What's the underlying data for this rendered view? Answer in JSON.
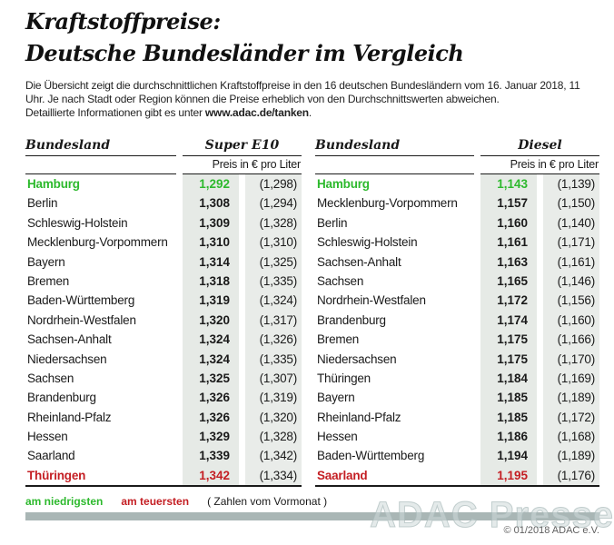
{
  "title": {
    "line1": "Kraftstoffpreise:",
    "line2": "Deutsche Bundesländer im Vergleich"
  },
  "description": {
    "line1": "Die Übersicht zeigt die durchschnittlichen Kraftstoffpreise in den 16 deutschen Bundesländern vom 16. Januar 2018, 11",
    "line2": "Uhr. Je nach Stadt oder Region können die Preise erheblich von den Durchschnittswerten abweichen.",
    "line3_prefix": "Detaillierte Informationen gibt es unter ",
    "line3_url": "www.adac.de/tanken",
    "line3_suffix": "."
  },
  "tables": [
    {
      "id": "super-e10",
      "state_header": "Bundesland",
      "fuel_header": "Super E10",
      "price_header": "Preis in € pro Liter",
      "rows": [
        {
          "state": "Hamburg",
          "price": "1,292",
          "prev": "(1,298)",
          "highlight": "lowest"
        },
        {
          "state": "Berlin",
          "price": "1,308",
          "prev": "(1,294)",
          "highlight": ""
        },
        {
          "state": "Schleswig-Holstein",
          "price": "1,309",
          "prev": "(1,328)",
          "highlight": ""
        },
        {
          "state": "Mecklenburg-Vorpommern",
          "price": "1,310",
          "prev": "(1,310)",
          "highlight": ""
        },
        {
          "state": "Bayern",
          "price": "1,314",
          "prev": "(1,325)",
          "highlight": ""
        },
        {
          "state": "Bremen",
          "price": "1,318",
          "prev": "(1,335)",
          "highlight": ""
        },
        {
          "state": "Baden-Württemberg",
          "price": "1,319",
          "prev": "(1,324)",
          "highlight": ""
        },
        {
          "state": "Nordrhein-Westfalen",
          "price": "1,320",
          "prev": "(1,317)",
          "highlight": ""
        },
        {
          "state": "Sachsen-Anhalt",
          "price": "1,324",
          "prev": "(1,326)",
          "highlight": ""
        },
        {
          "state": "Niedersachsen",
          "price": "1,324",
          "prev": "(1,335)",
          "highlight": ""
        },
        {
          "state": "Sachsen",
          "price": "1,325",
          "prev": "(1,307)",
          "highlight": ""
        },
        {
          "state": "Brandenburg",
          "price": "1,326",
          "prev": "(1,319)",
          "highlight": ""
        },
        {
          "state": "Rheinland-Pfalz",
          "price": "1,326",
          "prev": "(1,320)",
          "highlight": ""
        },
        {
          "state": "Hessen",
          "price": "1,329",
          "prev": "(1,328)",
          "highlight": ""
        },
        {
          "state": "Saarland",
          "price": "1,339",
          "prev": "(1,342)",
          "highlight": ""
        },
        {
          "state": "Thüringen",
          "price": "1,342",
          "prev": "(1,334)",
          "highlight": "highest"
        }
      ]
    },
    {
      "id": "diesel",
      "state_header": "Bundesland",
      "fuel_header": "Diesel",
      "price_header": "Preis in € pro Liter",
      "rows": [
        {
          "state": "Hamburg",
          "price": "1,143",
          "prev": "(1,139)",
          "highlight": "lowest"
        },
        {
          "state": "Mecklenburg-Vorpommern",
          "price": "1,157",
          "prev": "(1,150)",
          "highlight": ""
        },
        {
          "state": "Berlin",
          "price": "1,160",
          "prev": "(1,140)",
          "highlight": ""
        },
        {
          "state": "Schleswig-Holstein",
          "price": "1,161",
          "prev": "(1,171)",
          "highlight": ""
        },
        {
          "state": "Sachsen-Anhalt",
          "price": "1,163",
          "prev": "(1,161)",
          "highlight": ""
        },
        {
          "state": "Sachsen",
          "price": "1,165",
          "prev": "(1,146)",
          "highlight": ""
        },
        {
          "state": "Nordrhein-Westfalen",
          "price": "1,172",
          "prev": "(1,156)",
          "highlight": ""
        },
        {
          "state": "Brandenburg",
          "price": "1,174",
          "prev": "(1,160)",
          "highlight": ""
        },
        {
          "state": "Bremen",
          "price": "1,175",
          "prev": "(1,166)",
          "highlight": ""
        },
        {
          "state": "Niedersachsen",
          "price": "1,175",
          "prev": "(1,170)",
          "highlight": ""
        },
        {
          "state": "Thüringen",
          "price": "1,184",
          "prev": "(1,169)",
          "highlight": ""
        },
        {
          "state": "Bayern",
          "price": "1,185",
          "prev": "(1,189)",
          "highlight": ""
        },
        {
          "state": "Rheinland-Pfalz",
          "price": "1,185",
          "prev": "(1,172)",
          "highlight": ""
        },
        {
          "state": "Hessen",
          "price": "1,186",
          "prev": "(1,168)",
          "highlight": ""
        },
        {
          "state": "Baden-Württemberg",
          "price": "1,194",
          "prev": "(1,189)",
          "highlight": ""
        },
        {
          "state": "Saarland",
          "price": "1,195",
          "prev": "(1,176)",
          "highlight": "highest"
        }
      ]
    }
  ],
  "legend": {
    "lowest": "am niedrigsten",
    "highest": "am teuersten",
    "note": "( Zahlen vom Vormonat )"
  },
  "footer": {
    "watermark": "ADAC Presse",
    "copyright": "© 01/2018 ADAC e.V."
  },
  "colors": {
    "lowest_green": "#2db92d",
    "highest_red": "#c41e23",
    "price_band": "#e6eae6",
    "prev_band": "#e9ece9",
    "bottom_bar": "#a9b6b5"
  },
  "chart_data": [
    {
      "type": "table",
      "title": "Kraftstoffpreise: Deutsche Bundesländer im Vergleich — Super E10",
      "columns": [
        "Bundesland",
        "Super E10 Preis in € pro Liter",
        "Vormonat"
      ],
      "rows": [
        [
          "Hamburg",
          1.292,
          1.298
        ],
        [
          "Berlin",
          1.308,
          1.294
        ],
        [
          "Schleswig-Holstein",
          1.309,
          1.328
        ],
        [
          "Mecklenburg-Vorpommern",
          1.31,
          1.31
        ],
        [
          "Bayern",
          1.314,
          1.325
        ],
        [
          "Bremen",
          1.318,
          1.335
        ],
        [
          "Baden-Württemberg",
          1.319,
          1.324
        ],
        [
          "Nordrhein-Westfalen",
          1.32,
          1.317
        ],
        [
          "Sachsen-Anhalt",
          1.324,
          1.326
        ],
        [
          "Niedersachsen",
          1.324,
          1.335
        ],
        [
          "Sachsen",
          1.325,
          1.307
        ],
        [
          "Brandenburg",
          1.326,
          1.319
        ],
        [
          "Rheinland-Pfalz",
          1.326,
          1.32
        ],
        [
          "Hessen",
          1.329,
          1.328
        ],
        [
          "Saarland",
          1.339,
          1.342
        ],
        [
          "Thüringen",
          1.342,
          1.334
        ]
      ],
      "annotations": [
        "Hamburg = am niedrigsten (grün)",
        "Thüringen = am teuersten (rot)"
      ]
    },
    {
      "type": "table",
      "title": "Kraftstoffpreise: Deutsche Bundesländer im Vergleich — Diesel",
      "columns": [
        "Bundesland",
        "Diesel Preis in € pro Liter",
        "Vormonat"
      ],
      "rows": [
        [
          "Hamburg",
          1.143,
          1.139
        ],
        [
          "Mecklenburg-Vorpommern",
          1.157,
          1.15
        ],
        [
          "Berlin",
          1.16,
          1.14
        ],
        [
          "Schleswig-Holstein",
          1.161,
          1.171
        ],
        [
          "Sachsen-Anhalt",
          1.163,
          1.161
        ],
        [
          "Sachsen",
          1.165,
          1.146
        ],
        [
          "Nordrhein-Westfalen",
          1.172,
          1.156
        ],
        [
          "Brandenburg",
          1.174,
          1.16
        ],
        [
          "Bremen",
          1.175,
          1.166
        ],
        [
          "Niedersachsen",
          1.175,
          1.17
        ],
        [
          "Thüringen",
          1.184,
          1.169
        ],
        [
          "Bayern",
          1.185,
          1.189
        ],
        [
          "Rheinland-Pfalz",
          1.185,
          1.172
        ],
        [
          "Hessen",
          1.186,
          1.168
        ],
        [
          "Baden-Württemberg",
          1.194,
          1.189
        ],
        [
          "Saarland",
          1.195,
          1.176
        ]
      ],
      "annotations": [
        "Hamburg = am niedrigsten (grün)",
        "Saarland = am teuersten (rot)"
      ]
    }
  ]
}
